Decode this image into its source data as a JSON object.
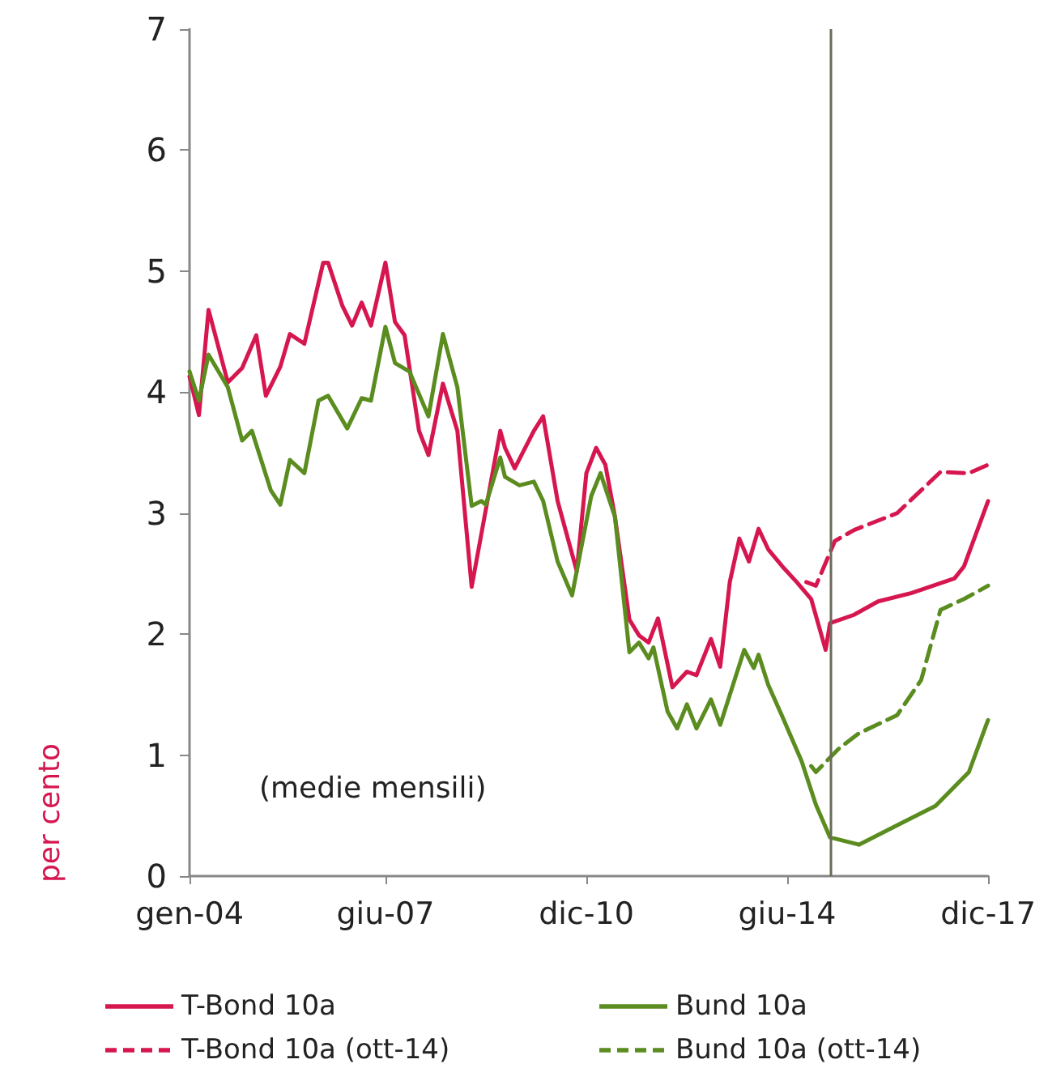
{
  "chart_data": {
    "type": "line",
    "ylabel": "per cento",
    "annotations": [
      "(medie mensili)"
    ],
    "xlim": [
      "2004-01",
      "2017-12"
    ],
    "xticks": [
      {
        "value": "2004-01",
        "label": "gen-04"
      },
      {
        "value": "2007-06",
        "label": "giu-07"
      },
      {
        "value": "2010-12",
        "label": "dic-10"
      },
      {
        "value": "2014-06",
        "label": "giu-14"
      },
      {
        "value": "2017-12",
        "label": "dic-17"
      }
    ],
    "ylim": [
      0,
      7
    ],
    "yticks": [
      0,
      1,
      2,
      3,
      4,
      5,
      6,
      7
    ],
    "grid": false,
    "legend": "bottom",
    "marker": "none",
    "ref_lines": [
      {
        "axis": "x",
        "value": "2015-03",
        "color": "#6b6b5a"
      }
    ],
    "series": [
      {
        "name": "T-Bond 10a",
        "color": "#d6174f",
        "line_style": "solid",
        "x": [
          "2004-01",
          "2004-03",
          "2004-05",
          "2004-09",
          "2004-12",
          "2005-03",
          "2005-05",
          "2005-08",
          "2005-10",
          "2006-01",
          "2006-05",
          "2006-06",
          "2006-09",
          "2006-11",
          "2007-01",
          "2007-03",
          "2007-06",
          "2007-08",
          "2007-10",
          "2008-01",
          "2008-03",
          "2008-06",
          "2008-09",
          "2008-12",
          "2009-02",
          "2009-06",
          "2009-07",
          "2009-09",
          "2010-01",
          "2010-03",
          "2010-06",
          "2010-10",
          "2010-12",
          "2011-02",
          "2011-04",
          "2011-06",
          "2011-09",
          "2011-11",
          "2012-01",
          "2012-03",
          "2012-06",
          "2012-09",
          "2012-11",
          "2013-02",
          "2013-04",
          "2013-06",
          "2013-08",
          "2013-10",
          "2013-12",
          "2014-02",
          "2014-05",
          "2014-08",
          "2014-11",
          "2015-02",
          "2015-03",
          "2015-08",
          "2016-01",
          "2016-08",
          "2017-05",
          "2017-07",
          "2017-12"
        ],
        "values": [
          4.13,
          3.81,
          4.68,
          4.08,
          4.2,
          4.47,
          3.97,
          4.21,
          4.48,
          4.4,
          5.07,
          5.07,
          4.71,
          4.55,
          4.74,
          4.55,
          5.07,
          4.58,
          4.47,
          3.68,
          3.48,
          4.07,
          3.68,
          2.39,
          2.83,
          3.68,
          3.54,
          3.37,
          3.68,
          3.8,
          3.1,
          2.52,
          3.33,
          3.54,
          3.4,
          2.97,
          2.12,
          1.99,
          1.93,
          2.13,
          1.56,
          1.69,
          1.66,
          1.96,
          1.73,
          2.43,
          2.79,
          2.6,
          2.87,
          2.7,
          2.56,
          2.43,
          2.29,
          1.87,
          2.09,
          2.16,
          2.27,
          2.34,
          2.46,
          2.56,
          3.1
        ]
      },
      {
        "name": "Bund 10a",
        "color": "#5b8c1f",
        "line_style": "solid",
        "x": [
          "2004-01",
          "2004-03",
          "2004-05",
          "2004-09",
          "2004-12",
          "2005-02",
          "2005-06",
          "2005-08",
          "2005-10",
          "2006-01",
          "2006-04",
          "2006-06",
          "2006-10",
          "2007-01",
          "2007-03",
          "2007-06",
          "2007-08",
          "2007-11",
          "2008-03",
          "2008-06",
          "2008-09",
          "2008-12",
          "2009-02",
          "2009-03",
          "2009-06",
          "2009-07",
          "2009-10",
          "2010-01",
          "2010-03",
          "2010-06",
          "2010-09",
          "2011-01",
          "2011-03",
          "2011-06",
          "2011-09",
          "2011-11",
          "2012-01",
          "2012-02",
          "2012-05",
          "2012-07",
          "2012-09",
          "2012-11",
          "2013-02",
          "2013-04",
          "2013-07",
          "2013-09",
          "2013-11",
          "2013-12",
          "2014-02",
          "2014-05",
          "2014-09",
          "2014-12",
          "2015-03",
          "2015-09",
          "2016-05",
          "2017-01",
          "2017-08",
          "2017-12"
        ],
        "values": [
          4.17,
          3.93,
          4.31,
          4.04,
          3.6,
          3.68,
          3.19,
          3.07,
          3.44,
          3.33,
          3.93,
          3.97,
          3.7,
          3.95,
          3.93,
          4.54,
          4.24,
          4.17,
          3.8,
          4.48,
          4.04,
          3.06,
          3.1,
          3.07,
          3.46,
          3.3,
          3.23,
          3.26,
          3.1,
          2.6,
          2.32,
          3.14,
          3.33,
          2.97,
          1.85,
          1.93,
          1.8,
          1.89,
          1.36,
          1.22,
          1.42,
          1.22,
          1.46,
          1.25,
          1.62,
          1.87,
          1.72,
          1.83,
          1.58,
          1.32,
          0.95,
          0.59,
          0.32,
          0.26,
          0.42,
          0.58,
          0.86,
          1.29
        ]
      },
      {
        "name": "T-Bond 10a (ott-14)",
        "color": "#d6174f",
        "line_style": "dashed",
        "x": [
          "2014-10",
          "2014-12",
          "2015-04",
          "2015-08",
          "2016-05",
          "2017-02",
          "2017-08",
          "2017-12"
        ],
        "values": [
          2.43,
          2.4,
          2.77,
          2.86,
          3.0,
          3.34,
          3.33,
          3.4
        ]
      },
      {
        "name": "Bund 10a (ott-14)",
        "color": "#5b8c1f",
        "line_style": "dashed",
        "x": [
          "2014-11",
          "2014-12",
          "2015-05",
          "2015-09",
          "2016-05",
          "2016-10",
          "2017-02",
          "2017-07",
          "2017-12"
        ],
        "values": [
          0.91,
          0.86,
          1.06,
          1.18,
          1.33,
          1.62,
          2.2,
          2.29,
          2.4
        ]
      }
    ]
  }
}
